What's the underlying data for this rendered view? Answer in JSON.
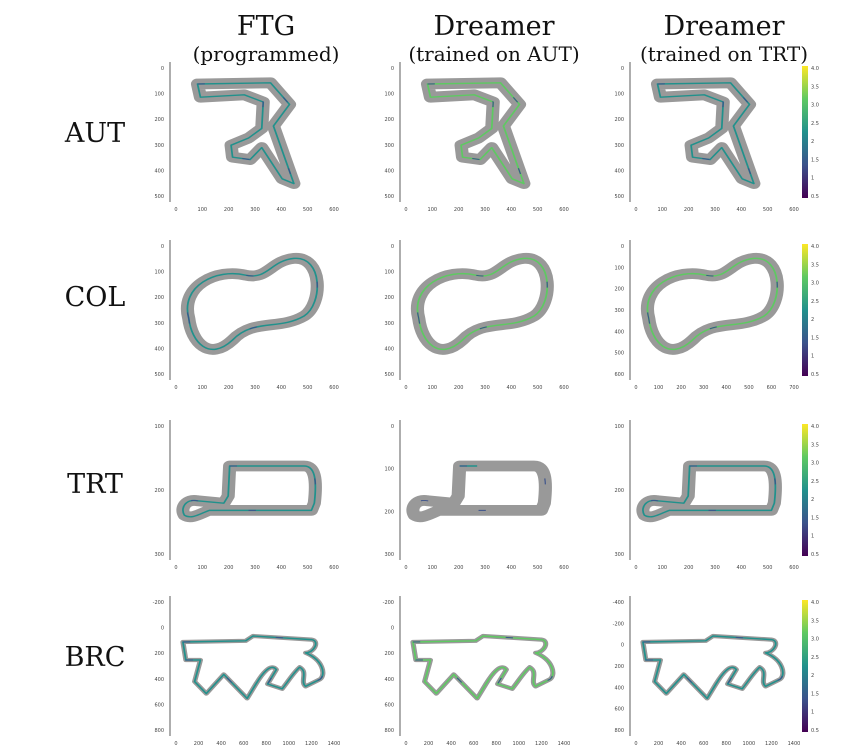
{
  "columns": [
    {
      "title": "FTG",
      "subtitle": "(programmed)"
    },
    {
      "title": "Dreamer",
      "subtitle": "(trained on AUT)"
    },
    {
      "title": "Dreamer",
      "subtitle": "(trained on TRT)"
    }
  ],
  "rows": [
    "AUT",
    "COL",
    "TRT",
    "BRC"
  ],
  "colors": {
    "track": "#999999",
    "viridis": [
      "#440154",
      "#3b528b",
      "#21918c",
      "#5ec962",
      "#fde725"
    ]
  },
  "chart_data": {
    "type": "line",
    "description_note": "",
    "colorbar": {
      "ticks": [
        "4.0",
        "3.5",
        "3.0",
        "2.5",
        "2",
        "1.5",
        "1",
        "0.5"
      ],
      "range": [
        0.5,
        4.0
      ]
    },
    "panels": [
      {
        "row": "AUT",
        "col": 0,
        "xticks": [
          "0",
          "100",
          "200",
          "300",
          "400",
          "500",
          "600"
        ],
        "yticks": [
          "0",
          "100",
          "200",
          "300",
          "400",
          "500"
        ],
        "colorbar": false,
        "trajectory": "full",
        "avg_speed": 2.2
      },
      {
        "row": "AUT",
        "col": 1,
        "xticks": [
          "0",
          "100",
          "200",
          "300",
          "400",
          "500",
          "600"
        ],
        "yticks": [
          "0",
          "100",
          "200",
          "300",
          "400",
          "500"
        ],
        "colorbar": false,
        "trajectory": "full",
        "avg_speed": 3.0
      },
      {
        "row": "AUT",
        "col": 2,
        "xticks": [
          "0",
          "100",
          "200",
          "300",
          "400",
          "500",
          "600"
        ],
        "yticks": [
          "0",
          "100",
          "200",
          "300",
          "400",
          "500"
        ],
        "colorbar": true,
        "trajectory": "full",
        "avg_speed": 2.4
      },
      {
        "row": "COL",
        "col": 0,
        "xticks": [
          "0",
          "100",
          "200",
          "300",
          "400",
          "500",
          "600"
        ],
        "yticks": [
          "0",
          "100",
          "200",
          "300",
          "400",
          "500"
        ],
        "colorbar": false,
        "trajectory": "full",
        "avg_speed": 2.3
      },
      {
        "row": "COL",
        "col": 1,
        "xticks": [
          "0",
          "100",
          "200",
          "300",
          "400",
          "500",
          "600"
        ],
        "yticks": [
          "0",
          "100",
          "200",
          "300",
          "400",
          "500"
        ],
        "colorbar": false,
        "trajectory": "full",
        "avg_speed": 3.3
      },
      {
        "row": "COL",
        "col": 2,
        "xticks": [
          "0",
          "100",
          "200",
          "300",
          "400",
          "500",
          "600",
          "700"
        ],
        "yticks": [
          "0",
          "100",
          "200",
          "300",
          "400",
          "500",
          "600"
        ],
        "colorbar": true,
        "trajectory": "full",
        "avg_speed": 3.0
      },
      {
        "row": "TRT",
        "col": 0,
        "xticks": [
          "0",
          "100",
          "200",
          "300",
          "400",
          "500",
          "600"
        ],
        "yticks": [
          "100",
          "200",
          "300"
        ],
        "colorbar": false,
        "trajectory": "full",
        "avg_speed": 2.3
      },
      {
        "row": "TRT",
        "col": 1,
        "xticks": [
          "0",
          "100",
          "200",
          "300",
          "400",
          "500",
          "600"
        ],
        "yticks": [
          "0",
          "100",
          "200",
          "300"
        ],
        "colorbar": false,
        "trajectory": "partial",
        "avg_speed": 2.2
      },
      {
        "row": "TRT",
        "col": 2,
        "xticks": [
          "0",
          "100",
          "200",
          "300",
          "400",
          "500",
          "600"
        ],
        "yticks": [
          "100",
          "200",
          "300"
        ],
        "colorbar": true,
        "trajectory": "full",
        "avg_speed": 2.3
      },
      {
        "row": "BRC",
        "col": 0,
        "xticks": [
          "0",
          "200",
          "400",
          "600",
          "800",
          "1000",
          "1200",
          "1400"
        ],
        "yticks": [
          "-200",
          "0",
          "200",
          "400",
          "600",
          "800"
        ],
        "colorbar": false,
        "trajectory": "full",
        "avg_speed": 2.3
      },
      {
        "row": "BRC",
        "col": 1,
        "xticks": [
          "0",
          "200",
          "400",
          "600",
          "800",
          "1000",
          "1200",
          "1400"
        ],
        "yticks": [
          "-200",
          "0",
          "200",
          "400",
          "600",
          "800"
        ],
        "colorbar": false,
        "trajectory": "full",
        "avg_speed": 2.9
      },
      {
        "row": "BRC",
        "col": 2,
        "xticks": [
          "0",
          "200",
          "400",
          "600",
          "800",
          "1000",
          "1200",
          "1400"
        ],
        "yticks": [
          "-400",
          "-200",
          "0",
          "200",
          "400",
          "600",
          "800"
        ],
        "colorbar": true,
        "trajectory": "full",
        "avg_speed": 2.2
      }
    ]
  }
}
